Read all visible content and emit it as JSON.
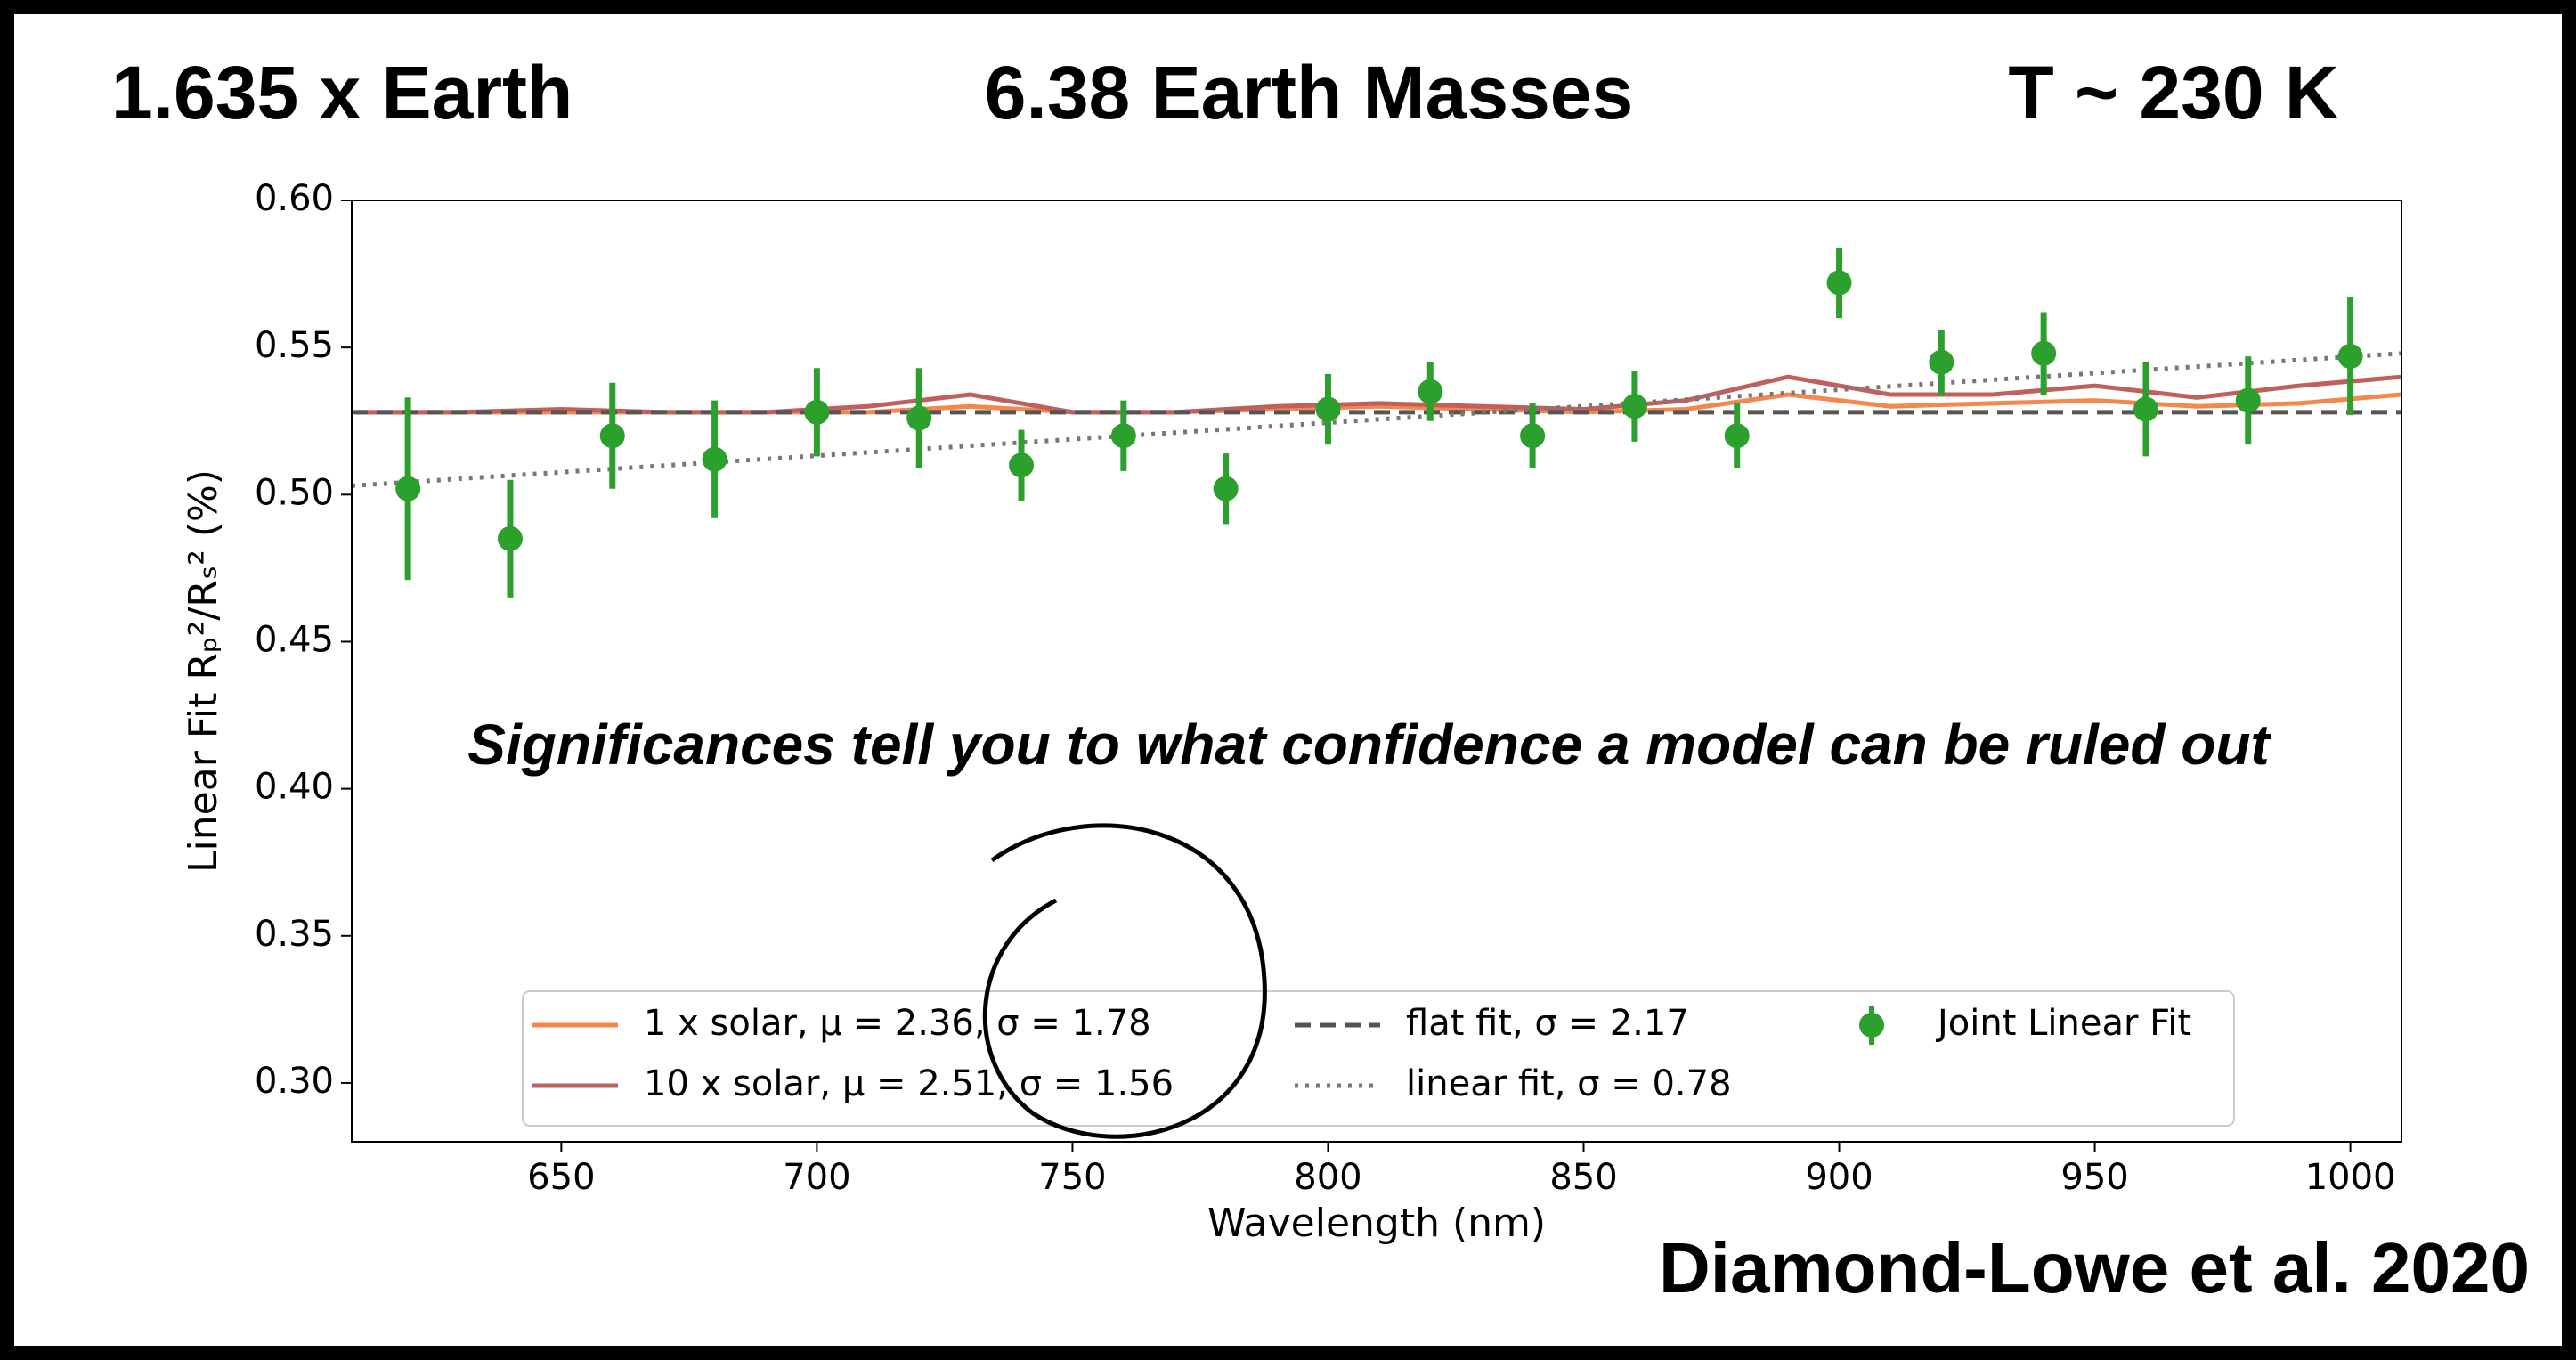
{
  "slide": {
    "headers": [
      "1.635 x Earth",
      "6.38 Earth Masses",
      "T ~ 230 K"
    ],
    "note": "Significances tell you to what confidence a model can be ruled out",
    "credit": "Diamond-Lowe et al. 2020"
  },
  "chart_data": {
    "type": "errorbar",
    "x_label": "Wavelength (nm)",
    "y_label": "Linear Fit Rₚ²/Rₛ² (%)",
    "xlim": [
      609,
      1010
    ],
    "ylim": [
      0.28,
      0.6
    ],
    "xticks": [
      650,
      700,
      750,
      800,
      850,
      900,
      950,
      1000
    ],
    "yticks": [
      {
        "value": 0.3,
        "label": "0.30"
      },
      0.35,
      {
        "value": 0.4,
        "label": "0.40"
      },
      0.45,
      {
        "value": 0.5,
        "label": "0.50"
      },
      0.55,
      {
        "value": 0.6,
        "label": "0.60"
      }
    ],
    "series": [
      {
        "name": "1 x solar, μ = 2.36, σ = 1.78",
        "color": "#f4874b",
        "style": "solid",
        "x": [
          610,
          630,
          650,
          670,
          690,
          710,
          730,
          750,
          770,
          790,
          810,
          830,
          850,
          870,
          890,
          910,
          930,
          950,
          970,
          990,
          1010
        ],
        "values": [
          0.528,
          0.528,
          0.528,
          0.528,
          0.528,
          0.528,
          0.53,
          0.528,
          0.528,
          0.529,
          0.53,
          0.529,
          0.528,
          0.529,
          0.534,
          0.53,
          0.531,
          0.532,
          0.53,
          0.531,
          0.534
        ]
      },
      {
        "name": "10 x solar, μ = 2.51, σ = 1.56",
        "color": "#c0605e",
        "style": "solid",
        "x": [
          610,
          630,
          650,
          670,
          690,
          710,
          730,
          750,
          770,
          790,
          810,
          830,
          850,
          870,
          890,
          910,
          930,
          950,
          970,
          990,
          1010
        ],
        "values": [
          0.528,
          0.528,
          0.529,
          0.528,
          0.528,
          0.53,
          0.534,
          0.528,
          0.528,
          0.53,
          0.531,
          0.53,
          0.529,
          0.532,
          0.54,
          0.534,
          0.534,
          0.537,
          0.533,
          0.537,
          0.54
        ]
      },
      {
        "name": "flat fit, σ = 2.17",
        "color": "#555555",
        "style": "dashed",
        "x": [
          609,
          1010
        ],
        "values": [
          0.528,
          0.528
        ]
      },
      {
        "name": "linear fit, σ = 0.78",
        "color": "#777777",
        "style": "dotted",
        "x": [
          609,
          1010
        ],
        "values": [
          0.503,
          0.548
        ]
      },
      {
        "name": "Joint Linear Fit",
        "color": "#2ca02c",
        "style": "errorbar",
        "x": [
          620,
          640,
          660,
          680,
          700,
          720,
          740,
          760,
          780,
          800,
          820,
          840,
          860,
          880,
          900,
          920,
          940,
          960,
          980,
          1000
        ],
        "values": [
          0.502,
          0.485,
          0.52,
          0.512,
          0.528,
          0.526,
          0.51,
          0.52,
          0.502,
          0.529,
          0.535,
          0.52,
          0.53,
          0.52,
          0.572,
          0.545,
          0.548,
          0.529,
          0.532,
          0.547
        ],
        "errors": [
          0.031,
          0.02,
          0.018,
          0.02,
          0.015,
          0.017,
          0.012,
          0.012,
          0.012,
          0.012,
          0.01,
          0.011,
          0.012,
          0.011,
          0.012,
          0.011,
          0.014,
          0.016,
          0.015,
          0.02
        ]
      }
    ]
  }
}
